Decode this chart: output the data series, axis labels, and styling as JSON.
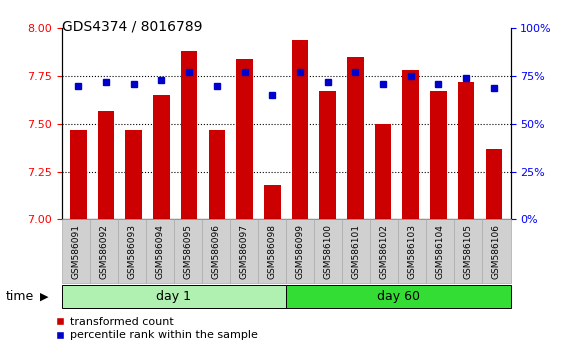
{
  "title": "GDS4374 / 8016789",
  "samples": [
    "GSM586091",
    "GSM586092",
    "GSM586093",
    "GSM586094",
    "GSM586095",
    "GSM586096",
    "GSM586097",
    "GSM586098",
    "GSM586099",
    "GSM586100",
    "GSM586101",
    "GSM586102",
    "GSM586103",
    "GSM586104",
    "GSM586105",
    "GSM586106"
  ],
  "red_values": [
    7.47,
    7.57,
    7.47,
    7.65,
    7.88,
    7.47,
    7.84,
    7.18,
    7.94,
    7.67,
    7.85,
    7.5,
    7.78,
    7.67,
    7.72,
    7.37
  ],
  "blue_values": [
    70,
    72,
    71,
    73,
    77,
    70,
    77,
    65,
    77,
    72,
    77,
    71,
    75,
    71,
    74,
    69
  ],
  "ylim_left": [
    7.0,
    8.0
  ],
  "ylim_right": [
    0,
    100
  ],
  "yticks_left": [
    7.0,
    7.25,
    7.5,
    7.75,
    8.0
  ],
  "yticks_right": [
    0,
    25,
    50,
    75,
    100
  ],
  "day1_count": 8,
  "day60_count": 8,
  "day1_label": "day 1",
  "day60_label": "day 60",
  "bar_color": "#cc0000",
  "marker_color": "#0000cc",
  "day1_bg": "#b0f0b0",
  "day60_bg": "#33dd33",
  "xtick_bg": "#d0d0d0",
  "xtick_edge": "#aaaaaa",
  "background_color": "#ffffff",
  "legend_red": "transformed count",
  "legend_blue": "percentile rank within the sample",
  "time_label": "time"
}
